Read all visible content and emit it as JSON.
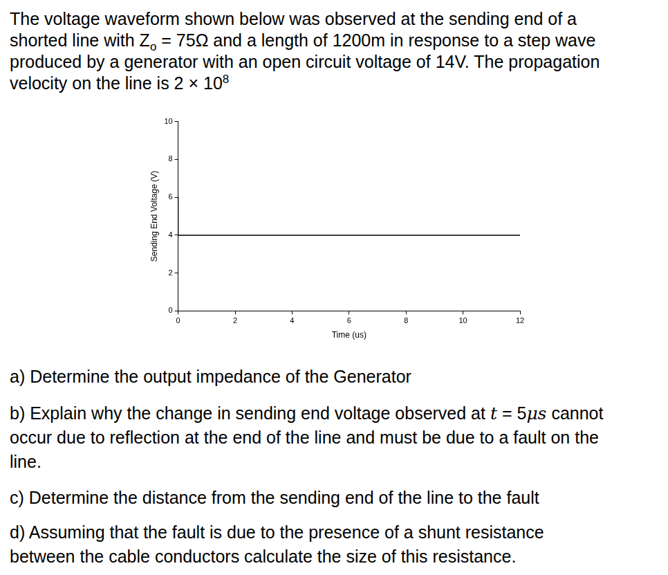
{
  "intro": [
    [
      "The voltage waveform shown below was observed at the sending end of a"
    ],
    [
      "shorted line with Z",
      {
        "sub": "o"
      },
      " = 75Ω and a length of 1200m in response to a step wave"
    ],
    [
      "produced by a generator with an open circuit voltage of 14V. The propagation"
    ],
    [
      "velocity on the line is 2 × 10",
      {
        "sup": "8"
      }
    ]
  ],
  "chart_data": {
    "type": "line",
    "x_label": "Time (us)",
    "y_label": "Sending End Voltage (V)",
    "x": [
      0,
      5,
      12
    ],
    "values": [
      6,
      4,
      4
    ],
    "color": "#000000",
    "line_style": "steps",
    "marker": "none",
    "xlim": [
      0,
      12
    ],
    "xticks": [
      0,
      2,
      4,
      6,
      8,
      10,
      12
    ],
    "ylim": [
      0,
      10
    ],
    "yticks": [
      0,
      2,
      4,
      6,
      8,
      10
    ],
    "grid": false
  },
  "questions": [
    [
      [
        "a) Determine the output impedance of the Generator"
      ]
    ],
    [
      [
        "b) Explain why the change in sending end voltage observed at ",
        {
          "italic": "t"
        },
        " = 5",
        {
          "italic": "μs"
        },
        " cannot"
      ],
      [
        "occur due to reflection at the end of the line and must be due to a fault on the"
      ],
      [
        "line."
      ]
    ],
    [
      [
        "c) Determine the distance from the sending end of the line to the fault"
      ]
    ],
    [
      [
        "d) Assuming that the fault is due to the presence of a shunt resistance"
      ],
      [
        "between the cable conductors calculate the size of this resistance."
      ]
    ]
  ]
}
